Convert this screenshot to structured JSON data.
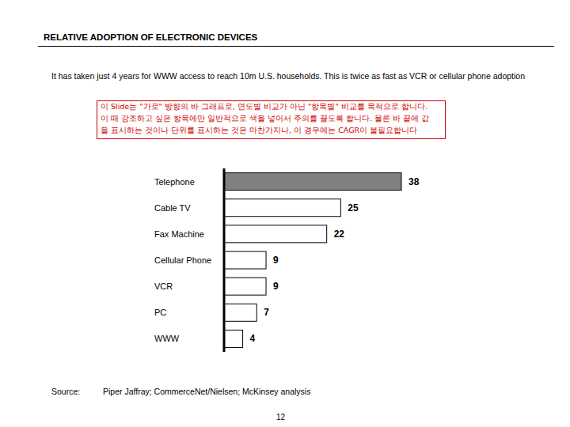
{
  "header": {
    "title": "RELATIVE ADOPTION OF ELECTRONIC DEVICES",
    "subtitle": "It has taken just 4 years for WWW access to reach 10m U.S. households.  This is twice as fast as VCR or cellular phone adoption"
  },
  "note": [
    "이 Slide는 \"가로\" 방향의 바 그래프로, 연도별 비교가 아닌 \"항목별\" 비교를 목적으로 합니다.",
    "이 때 강조하고 싶은 항목에만 일반적으로 색을 넣어서 주의를 끌도록 합니다. 물론 바 끝에 값",
    "을 표시하는 것이나 단위를 표시하는 것은 마찬가지나, 이 경우에는 CAGR이 불필요합니다"
  ],
  "chart_data": {
    "type": "bar",
    "orientation": "horizontal",
    "categories": [
      "Telephone",
      "Cable TV",
      "Fax Machine",
      "Cellular Phone",
      "VCR",
      "PC",
      "WWW"
    ],
    "values": [
      38,
      25,
      22,
      9,
      9,
      7,
      4
    ],
    "colors": [
      "#808080",
      "#ffffff",
      "#ffffff",
      "#ffffff",
      "#ffffff",
      "#ffffff",
      "#ffffff"
    ],
    "xlim": [
      0,
      38
    ],
    "grid": false,
    "data_labels": true,
    "tick_labels": "y"
  },
  "footer": {
    "source_label": "Source:",
    "source": "Piper Jaffray; CommerceNet/Nielsen; McKinsey analysis",
    "page": "12"
  }
}
